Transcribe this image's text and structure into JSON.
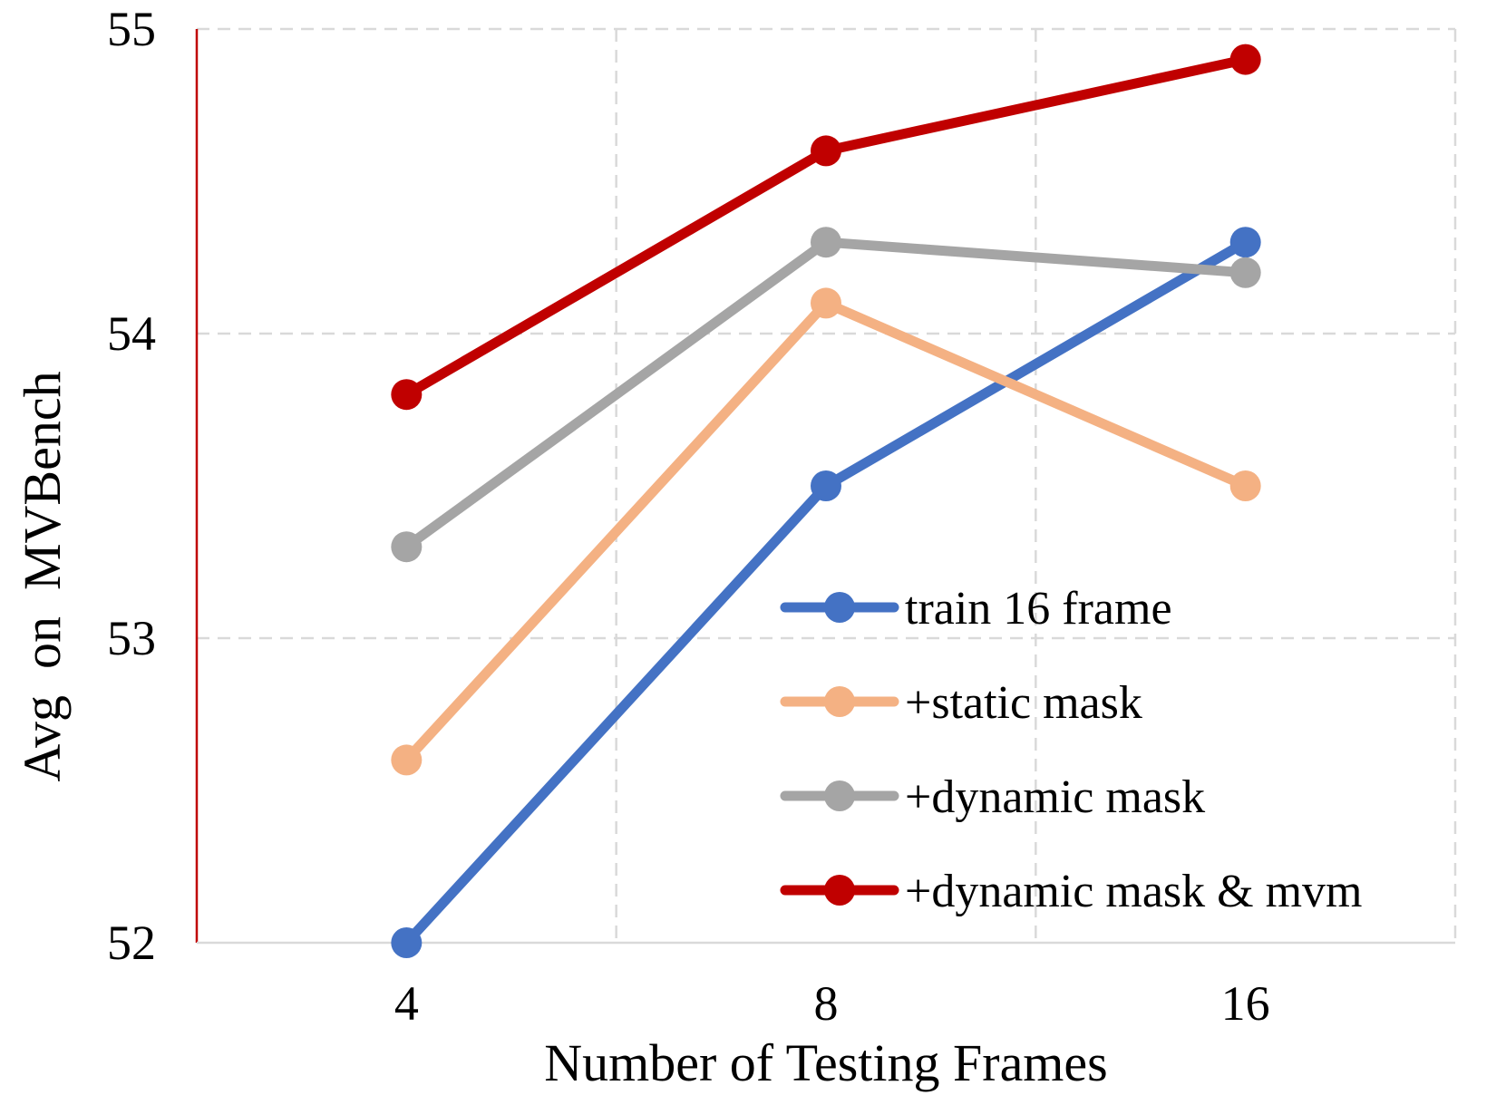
{
  "chart_data": {
    "type": "line",
    "title": "",
    "xlabel": "Number of Testing Frames",
    "ylabel": "Avg  on  MVBench",
    "categories": [
      "4",
      "8",
      "16"
    ],
    "ylim": [
      52,
      55
    ],
    "yticks": [
      "52",
      "53",
      "54",
      "55"
    ],
    "grid": true,
    "legend_position": "bottom-right",
    "series": [
      {
        "name": "train 16 frame",
        "color": "#4472C4",
        "values": [
          52.0,
          53.5,
          54.3
        ]
      },
      {
        "name": "+static mask",
        "color": "#F4B183",
        "values": [
          52.6,
          54.1,
          53.5
        ]
      },
      {
        "name": "+dynamic mask",
        "color": "#A5A5A5",
        "values": [
          53.3,
          54.3,
          54.2
        ]
      },
      {
        "name": "+dynamic mask & mvm",
        "color": "#C00000",
        "values": [
          53.8,
          54.6,
          54.9
        ]
      }
    ]
  }
}
